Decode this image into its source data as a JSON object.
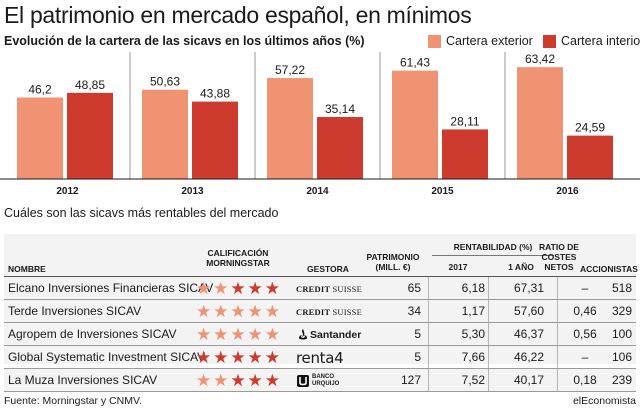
{
  "title": "El patrimonio en mercado español, en mínimos",
  "subtitle": "Evolución de la cartera de las sicavs en los últimos años (%)",
  "colors": {
    "exterior": "#ef9373",
    "interior": "#cc3b2d",
    "star_filled": "#cc3b2d",
    "star_light": "#ef9373"
  },
  "legend": {
    "exterior": "Cartera exterior",
    "interior": "Cartera interior"
  },
  "chart_data": {
    "type": "bar",
    "categories": [
      "2012",
      "2013",
      "2014",
      "2015",
      "2016"
    ],
    "series": [
      {
        "name": "Cartera exterior",
        "values": [
          46.2,
          50.63,
          57.22,
          61.43,
          63.42
        ],
        "labels": [
          "46,2",
          "50,63",
          "57,22",
          "61,43",
          "63,42"
        ]
      },
      {
        "name": "Cartera interior",
        "values": [
          48.85,
          43.88,
          35.14,
          28.11,
          24.59
        ],
        "labels": [
          "48,85",
          "43,88",
          "35,14",
          "28,11",
          "24,59"
        ]
      }
    ],
    "ylim": [
      0,
      72
    ],
    "grid": false,
    "legend_position": "top-right"
  },
  "section2": "Cuáles son las sicavs más rentables del mercado",
  "table": {
    "headers": {
      "nombre": "NOMBRE",
      "calificacion_1": "CALIFICACIÓN",
      "calificacion_2": "MORNINGSTAR",
      "gestora": "GESTORA",
      "patrimonio_1": "PATRIMONIO",
      "patrimonio_2": "(MILL. €)",
      "rentabilidad": "RENTABILIDAD (%)",
      "y2017": "2017",
      "y1": "1 AÑO",
      "ratio_1": "RATIO DE",
      "ratio_2": "COSTES",
      "ratio_3": "NETOS",
      "accionistas": "ACCIONISTAS"
    },
    "rows": [
      {
        "nombre": "Elcano Inversiones Financieras SICAV",
        "stars_filled": 3,
        "gestora": "Credit Suisse",
        "patrimonio": "65",
        "r2017": "6,18",
        "r1": "67,31",
        "ratio": "–",
        "accionistas": "518"
      },
      {
        "nombre": "Terde Inversiones SICAV",
        "stars_filled": 0,
        "gestora": "Credit Suisse",
        "patrimonio": "34",
        "r2017": "1,17",
        "r1": "57,60",
        "ratio": "0,46",
        "accionistas": "329"
      },
      {
        "nombre": "Agropem de Inversiones SICAV",
        "stars_filled": 0,
        "gestora": "Santander",
        "patrimonio": "5",
        "r2017": "5,30",
        "r1": "46,37",
        "ratio": "0,56",
        "accionistas": "100"
      },
      {
        "nombre": "Global Systematic Investment SICAV",
        "stars_filled": 5,
        "gestora": "renta4",
        "patrimonio": "5",
        "r2017": "7,66",
        "r1": "46,22",
        "ratio": "–",
        "accionistas": "106"
      },
      {
        "nombre": "La Muza Inversiones SICAV",
        "stars_filled": 3,
        "gestora": "Banco Urquijo",
        "patrimonio": "127",
        "r2017": "7,52",
        "r1": "40,17",
        "ratio": "0,18",
        "accionistas": "239"
      }
    ]
  },
  "footer": {
    "source": "Fuente: Morningstar y CNMV.",
    "brand": "elEconomista"
  }
}
